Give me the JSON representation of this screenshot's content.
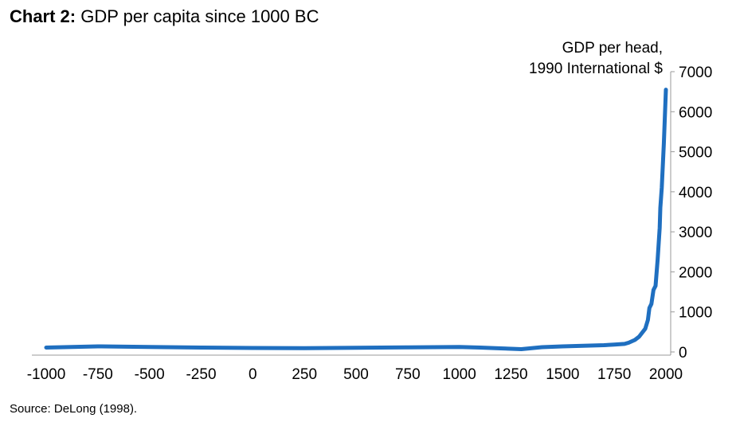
{
  "title_prefix": "Chart 2:",
  "title_text": "GDP per capita since 1000 BC",
  "source": "Source: DeLong (1998).",
  "chart_data": {
    "type": "line",
    "title": "Chart 2: GDP per capita since 1000 BC",
    "ylabel_line1": "GDP per head,",
    "ylabel_line2": "1990 International $",
    "xlabel": "",
    "xlim": [
      -1000,
      2000
    ],
    "ylim": [
      0,
      7000
    ],
    "x_ticks": [
      -1000,
      -750,
      -500,
      -250,
      0,
      250,
      500,
      750,
      1000,
      1250,
      1500,
      1750,
      2000
    ],
    "y_ticks": [
      0,
      1000,
      2000,
      3000,
      4000,
      5000,
      6000,
      7000
    ],
    "grid": false,
    "y_axis_side": "right",
    "series_color": "#1f6fc0",
    "series": [
      {
        "x": [
          -1000,
          -750,
          -500,
          -250,
          0,
          250,
          500,
          750,
          1000,
          1100,
          1200,
          1300,
          1400,
          1500,
          1600,
          1700,
          1750,
          1800,
          1820,
          1850,
          1870,
          1900,
          1913,
          1920,
          1930,
          1940,
          1950,
          1960,
          1970,
          1973,
          1980,
          1990,
          2000
        ],
        "y": [
          110,
          140,
          125,
          110,
          100,
          95,
          105,
          115,
          125,
          110,
          90,
          70,
          120,
          140,
          155,
          170,
          185,
          200,
          230,
          300,
          380,
          580,
          800,
          1100,
          1200,
          1550,
          1650,
          2300,
          3100,
          3600,
          4100,
          5200,
          6550
        ]
      }
    ]
  }
}
